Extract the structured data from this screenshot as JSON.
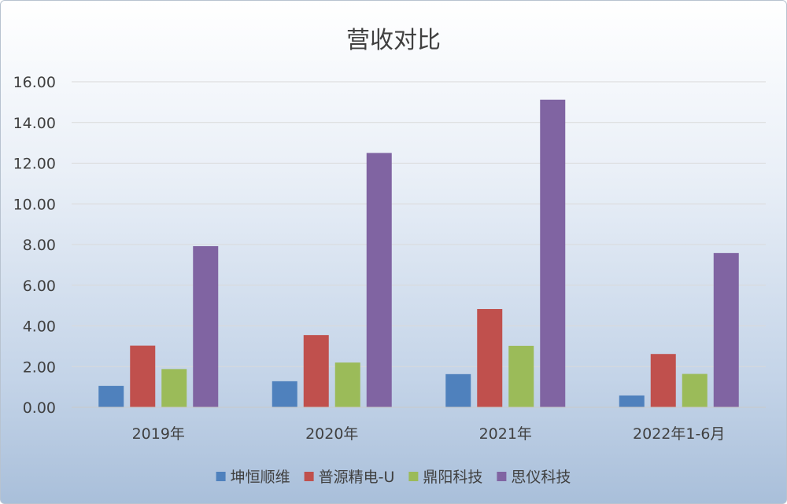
{
  "chart_data": {
    "type": "bar",
    "title": "营收对比",
    "xlabel": "",
    "ylabel": "",
    "ylim": [
      0,
      16
    ],
    "y_ticks": [
      "0.00",
      "2.00",
      "4.00",
      "6.00",
      "8.00",
      "10.00",
      "12.00",
      "14.00",
      "16.00"
    ],
    "categories": [
      "2019年",
      "2020年",
      "2021年",
      "2022年1-6月"
    ],
    "grid": true,
    "legend_position": "bottom",
    "series": [
      {
        "name": "坤恒顺维",
        "color": "#4f81bd",
        "values": [
          1.05,
          1.28,
          1.63,
          0.58
        ]
      },
      {
        "name": "普源精电-U",
        "color": "#c0504d",
        "values": [
          3.03,
          3.55,
          4.83,
          2.62
        ]
      },
      {
        "name": "鼎阳科技",
        "color": "#9bbb59",
        "values": [
          1.88,
          2.2,
          3.02,
          1.64
        ]
      },
      {
        "name": "思仪科技",
        "color": "#8064a2",
        "values": [
          7.92,
          12.5,
          15.12,
          7.58
        ]
      }
    ]
  }
}
